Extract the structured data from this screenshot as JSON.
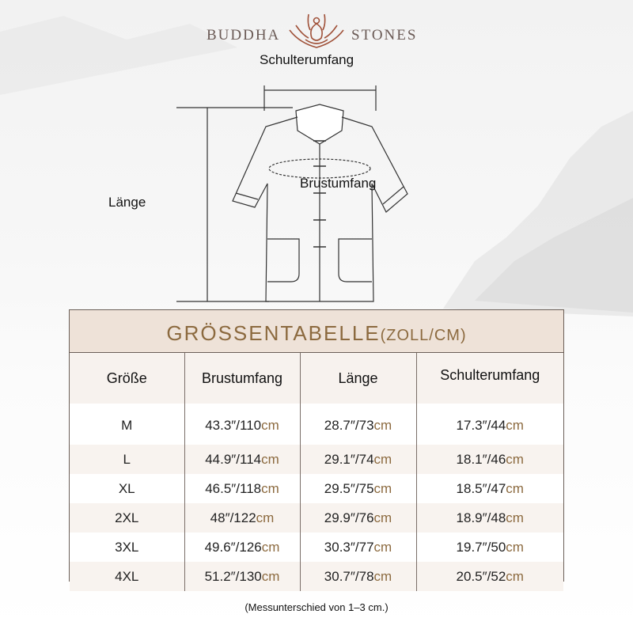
{
  "brand": {
    "left": "BUDDHA",
    "right": "STONES"
  },
  "diagram": {
    "shoulder": "Schulterumfang",
    "chest": "Brustumfang",
    "length": "Länge"
  },
  "chart": {
    "title": "GRÖSSENTABELLE",
    "title_unit": "(ZOLL/CM)",
    "headers": [
      "Größe",
      "Brustumfang",
      "Länge",
      "Schulterumfang"
    ],
    "rows": [
      {
        "size": "M",
        "cells": [
          {
            "v": "43.3″/110",
            "u": "cm"
          },
          {
            "v": "28.7″/73",
            "u": "cm"
          },
          {
            "v": "17.3″/44",
            "u": "cm"
          }
        ]
      },
      {
        "size": "L",
        "cells": [
          {
            "v": "44.9″/114",
            "u": "cm"
          },
          {
            "v": "29.1″/74",
            "u": "cm"
          },
          {
            "v": "18.1″/46",
            "u": "cm"
          }
        ]
      },
      {
        "size": "XL",
        "cells": [
          {
            "v": "46.5″/118",
            "u": "cm"
          },
          {
            "v": "29.5″/75",
            "u": "cm"
          },
          {
            "v": "18.5″/47",
            "u": "cm"
          }
        ]
      },
      {
        "size": "2XL",
        "cells": [
          {
            "v": "48″/122",
            "u": "cm"
          },
          {
            "v": "29.9″/76",
            "u": "cm"
          },
          {
            "v": "18.9″/48",
            "u": "cm"
          }
        ]
      },
      {
        "size": "3XL",
        "cells": [
          {
            "v": "49.6″/126",
            "u": "cm"
          },
          {
            "v": "30.3″/77",
            "u": "cm"
          },
          {
            "v": "19.7″/50",
            "u": "cm"
          }
        ]
      },
      {
        "size": "4XL",
        "cells": [
          {
            "v": "51.2″/130",
            "u": "cm"
          },
          {
            "v": "30.7″/78",
            "u": "cm"
          },
          {
            "v": "20.5″/52",
            "u": "cm"
          }
        ]
      }
    ]
  },
  "note": "(Messunterschied von 1–3 cm.)",
  "colors": {
    "accent": "#8c6a3f",
    "title_bg": "#eee2d8",
    "logo": "#a0523a"
  }
}
